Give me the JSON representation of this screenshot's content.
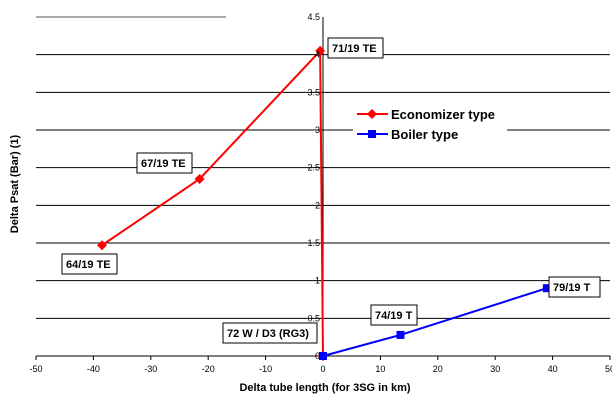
{
  "chart_data": {
    "type": "line",
    "title": "",
    "xlabel": "Delta tube length (for 3SG in km)",
    "ylabel": "Delta Psat (Bar)  (1)",
    "xlim": [
      -50,
      50
    ],
    "ylim": [
      0,
      4.5
    ],
    "x_ticks": [
      "-50",
      "-40",
      "-30",
      "-20",
      "-10",
      "0",
      "10",
      "20",
      "30",
      "40",
      "50"
    ],
    "y_ticks": [
      "0",
      "0.5",
      "1",
      "1.5",
      "2",
      "2.5",
      "3",
      "3.5",
      "4",
      "4.5"
    ],
    "grid": "horizontal",
    "legend_position": "right",
    "series": [
      {
        "name": "Economizer type",
        "color": "#ff0000",
        "marker": "diamond",
        "x": [
          -38.5,
          -21.5,
          -0.5,
          0
        ],
        "y": [
          1.47,
          2.35,
          4.05,
          0.0
        ]
      },
      {
        "name": "Boiler type",
        "color": "#0000ff",
        "marker": "square",
        "x": [
          0,
          13.5,
          39
        ],
        "y": [
          0.0,
          0.28,
          0.9
        ]
      }
    ],
    "annotations": [
      {
        "text": "64/19 TE",
        "x": -38.5,
        "y": 1.47
      },
      {
        "text": "67/19 TE",
        "x": -21.5,
        "y": 2.35
      },
      {
        "text": "71/19 TE",
        "x": -0.5,
        "y": 4.05
      },
      {
        "text": "72 W / D3 (RG3)",
        "x": 0,
        "y": 0
      },
      {
        "text": "74/19 T",
        "x": 13.5,
        "y": 0.28
      },
      {
        "text": "79/19 T",
        "x": 39,
        "y": 0.9
      }
    ]
  }
}
